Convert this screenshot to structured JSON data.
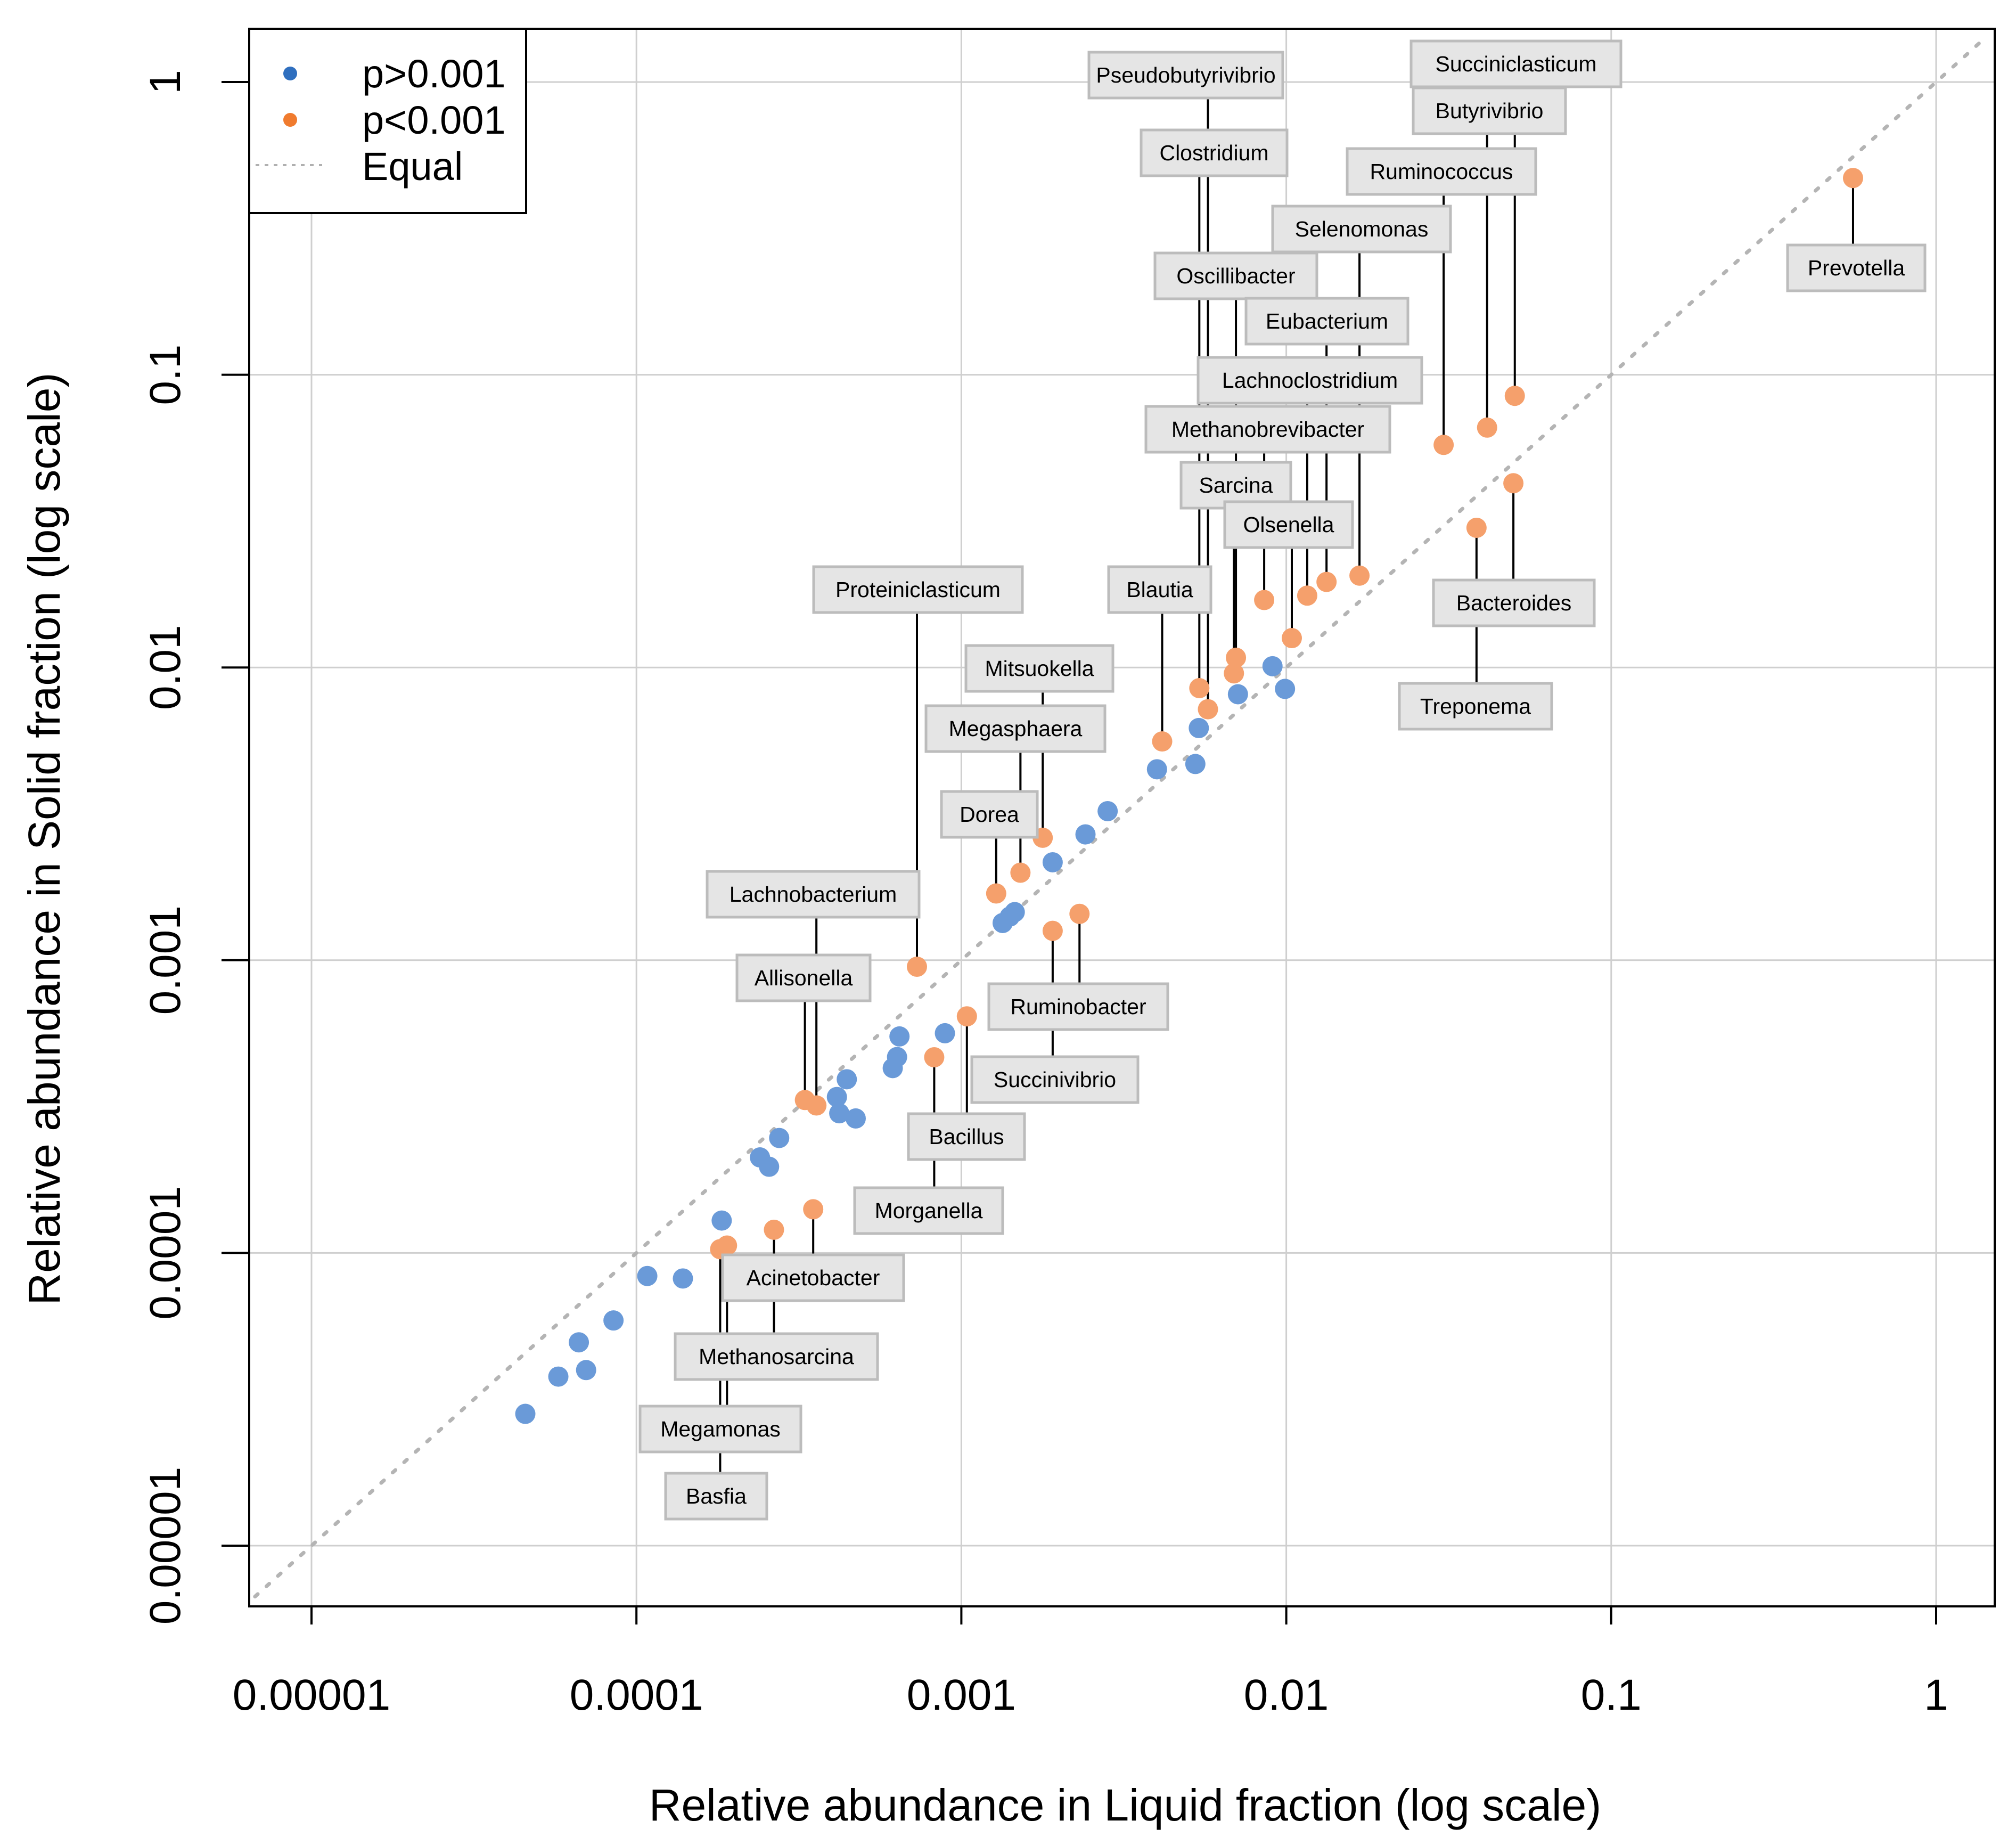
{
  "chart_data": {
    "type": "scatter",
    "title": "",
    "xlabel": "Relative abundance in Liquid fraction (log scale)",
    "ylabel": "Relative abundance in Solid fraction (log scale)",
    "x_scale": "log",
    "y_scale": "log",
    "xlim": [
      6.7e-06,
      1.4
    ],
    "ylim": [
      5.3e-06,
      1.45
    ],
    "x_ticks": [
      1e-05,
      0.0001,
      0.001,
      0.01,
      0.1,
      1
    ],
    "x_tick_labels": [
      "0.00001",
      "0.0001",
      "0.001",
      "0.01",
      "0.1",
      "1"
    ],
    "y_ticks": [
      1e-05,
      0.0001,
      0.001,
      0.01,
      0.1,
      1
    ],
    "y_tick_labels": [
      "0.00001",
      "0.0001",
      "0.001",
      "0.01",
      "0.1",
      "1"
    ],
    "grid": true,
    "legend": {
      "position": "top-left",
      "entries": [
        {
          "label": "p>0.001",
          "kind": "point",
          "color": "#2f6fbf"
        },
        {
          "label": "p<0.001",
          "kind": "point",
          "color": "#f07b2e"
        },
        {
          "label": "Equal",
          "kind": "line",
          "color": "#b0b0b0"
        }
      ]
    },
    "reference_line": {
      "label": "Equal",
      "slope": 1,
      "style": "dotted",
      "color": "#b0b0b0"
    },
    "series": [
      {
        "name": "p>0.001",
        "color": "#6a9ad8",
        "points": [
          {
            "x": 4.55e-05,
            "y": 2.82e-05
          },
          {
            "x": 5.75e-05,
            "y": 3.78e-05
          },
          {
            "x": 6.65e-05,
            "y": 4.95e-05
          },
          {
            "x": 7e-05,
            "y": 3.98e-05
          },
          {
            "x": 8.5e-05,
            "y": 5.88e-05
          },
          {
            "x": 0.000108,
            "y": 8.34e-05
          },
          {
            "x": 0.000139,
            "y": 8.18e-05
          },
          {
            "x": 0.000183,
            "y": 0.000129
          },
          {
            "x": 0.00024,
            "y": 0.000212
          },
          {
            "x": 0.000256,
            "y": 0.000197
          },
          {
            "x": 0.000275,
            "y": 0.000247
          },
          {
            "x": 0.000414,
            "y": 0.000341
          },
          {
            "x": 0.000421,
            "y": 0.0003
          },
          {
            "x": 0.000444,
            "y": 0.000392
          },
          {
            "x": 0.000473,
            "y": 0.000288
          },
          {
            "x": 0.000615,
            "y": 0.000428
          },
          {
            "x": 0.000634,
            "y": 0.000467
          },
          {
            "x": 0.000645,
            "y": 0.000549
          },
          {
            "x": 0.00089,
            "y": 0.000563
          },
          {
            "x": 0.00134,
            "y": 0.00134
          },
          {
            "x": 0.00141,
            "y": 0.00141
          },
          {
            "x": 0.00146,
            "y": 0.00146
          },
          {
            "x": 0.00191,
            "y": 0.00216
          },
          {
            "x": 0.00241,
            "y": 0.00269
          },
          {
            "x": 0.00282,
            "y": 0.00323
          },
          {
            "x": 0.004,
            "y": 0.00449
          },
          {
            "x": 0.00525,
            "y": 0.00468
          },
          {
            "x": 0.00538,
            "y": 0.00621
          },
          {
            "x": 0.0071,
            "y": 0.0081
          },
          {
            "x": 0.00907,
            "y": 0.0101
          },
          {
            "x": 0.00991,
            "y": 0.00845
          }
        ]
      },
      {
        "name": "p<0.001",
        "color": "#f5a06c",
        "points": [
          {
            "x": 0.000181,
            "y": 0.000103,
            "genus": "Basfia"
          },
          {
            "x": 0.00019,
            "y": 0.000106,
            "genus": "Megamonas"
          },
          {
            "x": 0.000265,
            "y": 0.00012,
            "genus": "Methanosarcina"
          },
          {
            "x": 0.00035,
            "y": 0.000141,
            "genus": "Acinetobacter"
          },
          {
            "x": 0.00033,
            "y": 0.000333,
            "genus": "Allisonella"
          },
          {
            "x": 0.000358,
            "y": 0.000319,
            "genus": "Lachnobacterium"
          },
          {
            "x": 0.00073,
            "y": 0.00095,
            "genus": "Proteiniclasticum"
          },
          {
            "x": 0.000825,
            "y": 0.000466,
            "genus": "Morganella"
          },
          {
            "x": 0.00104,
            "y": 0.000643,
            "genus": "Bacillus"
          },
          {
            "x": 0.00128,
            "y": 0.00169,
            "genus": "Dorea"
          },
          {
            "x": 0.00152,
            "y": 0.00199,
            "genus": "Megasphaera"
          },
          {
            "x": 0.00178,
            "y": 0.00262,
            "genus": "Mitsuokella"
          },
          {
            "x": 0.00191,
            "y": 0.00126,
            "genus": "Succinivibrio"
          },
          {
            "x": 0.00231,
            "y": 0.00144,
            "genus": "Ruminobacter"
          },
          {
            "x": 0.00415,
            "y": 0.00559,
            "genus": "Blautia"
          },
          {
            "x": 0.0054,
            "y": 0.0085,
            "genus": "Clostridium"
          },
          {
            "x": 0.00574,
            "y": 0.0072,
            "genus": "Pseudobutyrivibrio"
          },
          {
            "x": 0.0069,
            "y": 0.00955,
            "genus": "Sarcina"
          },
          {
            "x": 0.007,
            "y": 0.0108,
            "genus": "Oscillibacter"
          },
          {
            "x": 0.00855,
            "y": 0.017,
            "genus": "Methanobrevibacter"
          },
          {
            "x": 0.0104,
            "y": 0.0126,
            "genus": "Olsenella"
          },
          {
            "x": 0.0116,
            "y": 0.0176,
            "genus": "Lachnoclostridium"
          },
          {
            "x": 0.0133,
            "y": 0.0196,
            "genus": "Eubacterium"
          },
          {
            "x": 0.0168,
            "y": 0.0206,
            "genus": "Selenomonas"
          },
          {
            "x": 0.0305,
            "y": 0.0576,
            "genus": "Ruminococcus"
          },
          {
            "x": 0.0385,
            "y": 0.03,
            "genus": "Treponema"
          },
          {
            "x": 0.0415,
            "y": 0.066,
            "genus": "Butyrivibrio"
          },
          {
            "x": 0.05,
            "y": 0.0426,
            "genus": "Bacteroides"
          },
          {
            "x": 0.0505,
            "y": 0.0847,
            "genus": "Succiniclasticum"
          },
          {
            "x": 0.555,
            "y": 0.47,
            "genus": "Prevotella"
          }
        ]
      }
    ]
  }
}
